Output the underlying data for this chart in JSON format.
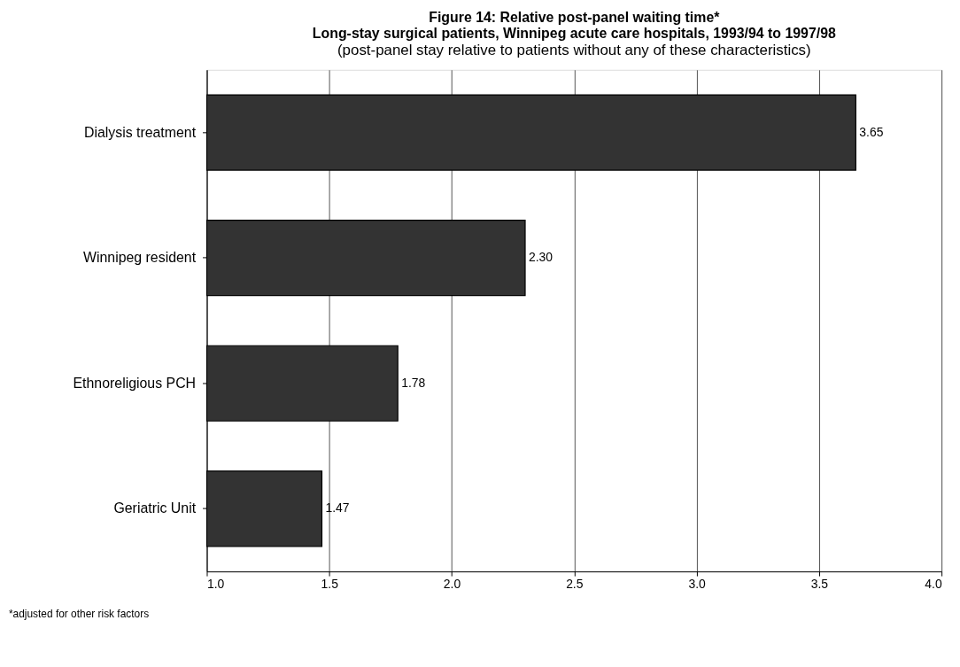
{
  "chart_data": {
    "type": "bar",
    "orientation": "horizontal",
    "title": "Figure 14: Relative post-panel waiting time*\nLong-stay surgical patients, Winnipeg acute care hospitals, 1993/94 to 1997/98",
    "subtitle": "(post-panel stay relative to patients without any of these characteristics)",
    "categories": [
      "Dialysis treatment",
      "Winnipeg resident",
      "Ethnoreligious PCH",
      "Geriatric Unit"
    ],
    "values": [
      3.65,
      2.3,
      1.78,
      1.47
    ],
    "value_labels": [
      "3.65",
      "2.30",
      "1.78",
      "1.47"
    ],
    "color": "#333333",
    "xlim": [
      1.0,
      4.0
    ],
    "xticks": [
      {
        "value": 1.0,
        "label": "1.0"
      },
      {
        "value": 1.5,
        "label": "1.5"
      },
      {
        "value": 2.0,
        "label": "2.0"
      },
      {
        "value": 2.5,
        "label": "2.5"
      },
      {
        "value": 3.0,
        "label": "3.0"
      },
      {
        "value": 3.5,
        "label": "3.5"
      },
      {
        "value": 4.0,
        "label": "4.0"
      }
    ],
    "grid": "x",
    "annotations": [
      "*adjusted for other risk factors"
    ]
  }
}
